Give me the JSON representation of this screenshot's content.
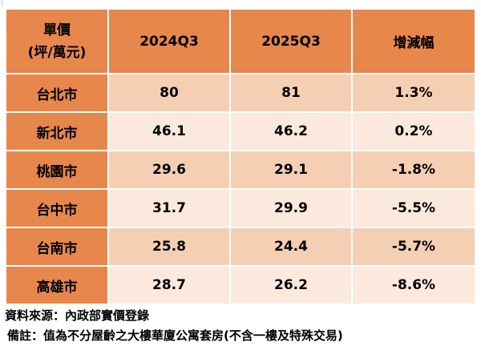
{
  "table": {
    "header": {
      "unit_line1": "單價",
      "unit_line2": "(坪/萬元)",
      "col_2024": "2024Q3",
      "col_2025": "2025Q3",
      "col_change": "增減幅"
    },
    "rows": [
      {
        "city": "台北市",
        "v2024": "80",
        "v2025": "81",
        "change": "1.3%"
      },
      {
        "city": "新北市",
        "v2024": "46.1",
        "v2025": "46.2",
        "change": "0.2%"
      },
      {
        "city": "桃園市",
        "v2024": "29.6",
        "v2025": "29.1",
        "change": "-1.8%"
      },
      {
        "city": "台中市",
        "v2024": "31.7",
        "v2025": "29.9",
        "change": "-5.5%"
      },
      {
        "city": "台南市",
        "v2024": "25.8",
        "v2025": "24.4",
        "change": "-5.7%"
      },
      {
        "city": "高雄市",
        "v2024": "28.7",
        "v2025": "26.2",
        "change": "-8.6%"
      }
    ]
  },
  "notes": {
    "source": "資料來源：內政部實價登錄",
    "remark": "備註：值為不分屋齡之大樓華廈公寓套房(不含一樓及特殊交易)"
  },
  "colors": {
    "header_bg": "#e7874c",
    "row_dark_bg": "#f5cfb4",
    "row_light_bg": "#fbe9dd"
  }
}
